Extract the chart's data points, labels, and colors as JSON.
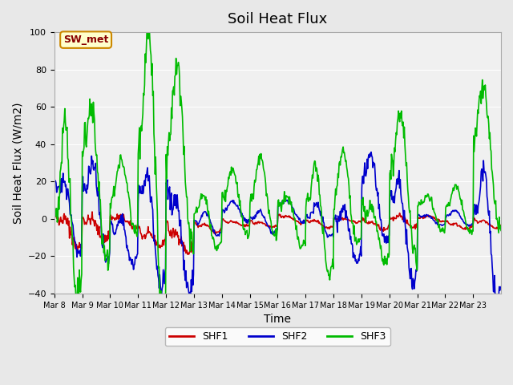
{
  "title": "Soil Heat Flux",
  "xlabel": "Time",
  "ylabel": "Soil Heat Flux (W/m2)",
  "ylim": [
    -40,
    100
  ],
  "yticks": [
    -40,
    -20,
    0,
    20,
    40,
    60,
    80,
    100
  ],
  "xtick_labels": [
    "Mar 8",
    "Mar 9",
    "Mar 10",
    "Mar 11",
    "Mar 12",
    "Mar 13",
    "Mar 14",
    "Mar 15",
    "Mar 16",
    "Mar 17",
    "Mar 18",
    "Mar 19",
    "Mar 20",
    "Mar 21",
    "Mar 22",
    "Mar 23"
  ],
  "n_days": 16,
  "shf1_color": "#cc0000",
  "shf2_color": "#0000cc",
  "shf3_color": "#00bb00",
  "bg_color": "#e8e8e8",
  "plot_bg": "#f0f0f0",
  "legend_label": "SW_met",
  "legend_bg": "#ffffcc",
  "legend_border": "#cc8800",
  "line_width": 1.2,
  "title_fontsize": 13,
  "axis_label_fontsize": 10
}
